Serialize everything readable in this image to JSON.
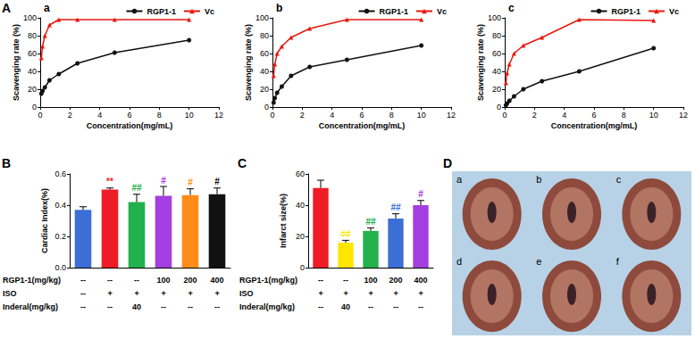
{
  "chart_data": [
    {
      "type": "line",
      "title": "a",
      "x": [
        0.078,
        0.156,
        0.3125,
        0.625,
        1.25,
        2.5,
        5,
        10
      ],
      "series": [
        {
          "name": "RGP1-1",
          "color": "#111111",
          "marker": "circle",
          "values": [
            15,
            18,
            22,
            30,
            37,
            49,
            61,
            75
          ]
        },
        {
          "name": "Vc",
          "color": "#e8170f",
          "marker": "triangle",
          "values": [
            55,
            68,
            80,
            92,
            98,
            98,
            98,
            98
          ]
        }
      ],
      "xlabel": "Concentration(mg/mL)",
      "ylabel": "Scavenging rate (%)",
      "xlim": [
        0,
        12
      ],
      "xticks": [
        0,
        2,
        4,
        6,
        8,
        10,
        12
      ],
      "ylim": [
        0,
        100
      ],
      "yticks": [
        0,
        20,
        40,
        60,
        80,
        100
      ],
      "grid": false,
      "legend": "upper right"
    },
    {
      "type": "line",
      "title": "b",
      "x": [
        0.078,
        0.156,
        0.3125,
        0.625,
        1.25,
        2.5,
        5,
        10
      ],
      "series": [
        {
          "name": "RGP1-1",
          "color": "#111111",
          "marker": "circle",
          "values": [
            5,
            10,
            16,
            23,
            35,
            45,
            53,
            69
          ]
        },
        {
          "name": "Vc",
          "color": "#e8170f",
          "marker": "triangle",
          "values": [
            35,
            48,
            60,
            68,
            78,
            88,
            98,
            98
          ]
        }
      ],
      "xlabel": "Concentration(mg/mL)",
      "ylabel": "Scavenging rate (%)",
      "xlim": [
        0,
        12
      ],
      "xticks": [
        0,
        2,
        4,
        6,
        8,
        10,
        12
      ],
      "ylim": [
        0,
        100
      ],
      "yticks": [
        0,
        20,
        40,
        60,
        80,
        100
      ],
      "grid": false,
      "legend": "upper right"
    },
    {
      "type": "line",
      "title": "c",
      "x": [
        0.078,
        0.156,
        0.3125,
        0.625,
        1.25,
        2.5,
        5,
        10
      ],
      "series": [
        {
          "name": "RGP1-1",
          "color": "#111111",
          "marker": "circle",
          "values": [
            2,
            4,
            7,
            12,
            20,
            29,
            40,
            66
          ]
        },
        {
          "name": "Vc",
          "color": "#e8170f",
          "marker": "triangle",
          "values": [
            27,
            38,
            48,
            60,
            69,
            78,
            98,
            97
          ]
        }
      ],
      "xlabel": "Concentration(mg/mL)",
      "ylabel": "Scavenging rate (%)",
      "xlim": [
        0,
        12
      ],
      "xticks": [
        0,
        2,
        4,
        6,
        8,
        10,
        12
      ],
      "ylim": [
        0,
        100
      ],
      "yticks": [
        0,
        20,
        40,
        60,
        80,
        100
      ],
      "grid": false,
      "legend": "upper right"
    },
    {
      "type": "bar",
      "categories": [
        null,
        null,
        null,
        null,
        null,
        null
      ],
      "values": [
        0.37,
        0.5,
        0.42,
        0.46,
        0.465,
        0.47
      ],
      "errors": [
        0.02,
        0.01,
        0.05,
        0.06,
        0.04,
        0.04
      ],
      "colors": [
        "#3c6fd6",
        "#ee1c24",
        "#22b14c",
        "#a33ee0",
        "#ff8c1a",
        "#111111"
      ],
      "annotations": [
        null,
        "**",
        "##",
        "#",
        "#",
        "#"
      ],
      "ylabel": "Cardiac Index(%)",
      "ylim": [
        0,
        0.6
      ],
      "yticks": [
        {
          "value": 0,
          "label": "0.0"
        },
        0.2,
        0.4,
        0.6
      ],
      "grid": false,
      "tick_labels": "y",
      "table": {
        "rows": [
          {
            "label": "RGP1-1(mg/kg)",
            "cells": [
              "--",
              "--",
              "--",
              "100",
              "200",
              "400"
            ]
          },
          {
            "label": "ISO",
            "cells": [
              "--",
              "+",
              "+",
              "+",
              "+",
              "+"
            ]
          },
          {
            "label": "Inderal(mg/kg)",
            "cells": [
              "--",
              "--",
              "40",
              "--",
              "--",
              "--"
            ]
          }
        ]
      }
    },
    {
      "type": "bar",
      "categories": [
        null,
        null,
        null,
        null,
        null
      ],
      "values": [
        51,
        16,
        23.5,
        31.5,
        40
      ],
      "errors": [
        5,
        1.5,
        2,
        3,
        3
      ],
      "colors": [
        "#ee1c24",
        "#ffe600",
        "#22b14c",
        "#3c6fd6",
        "#a33ee0"
      ],
      "annotations": [
        null,
        "##",
        "##",
        "##",
        "#"
      ],
      "ylabel": "Infarct size(%)",
      "ylim": [
        0,
        60
      ],
      "yticks": [
        0,
        20,
        40,
        60
      ],
      "grid": false,
      "tick_labels": "y",
      "table": {
        "rows": [
          {
            "label": "RGP1-1(mg/kg)",
            "cells": [
              "--",
              "--",
              "100",
              "200",
              "400"
            ]
          },
          {
            "label": "ISO",
            "cells": [
              "+",
              "+",
              "+",
              "+",
              "+"
            ]
          },
          {
            "label": "Inderal(mg/kg)",
            "cells": [
              "--",
              "40",
              "--",
              "--",
              "--"
            ]
          }
        ]
      }
    }
  ],
  "panel_labels": [
    "A",
    "B",
    "C",
    "D"
  ],
  "photos": {
    "labels": [
      "a",
      "b",
      "c",
      "d",
      "e",
      "f"
    ]
  }
}
